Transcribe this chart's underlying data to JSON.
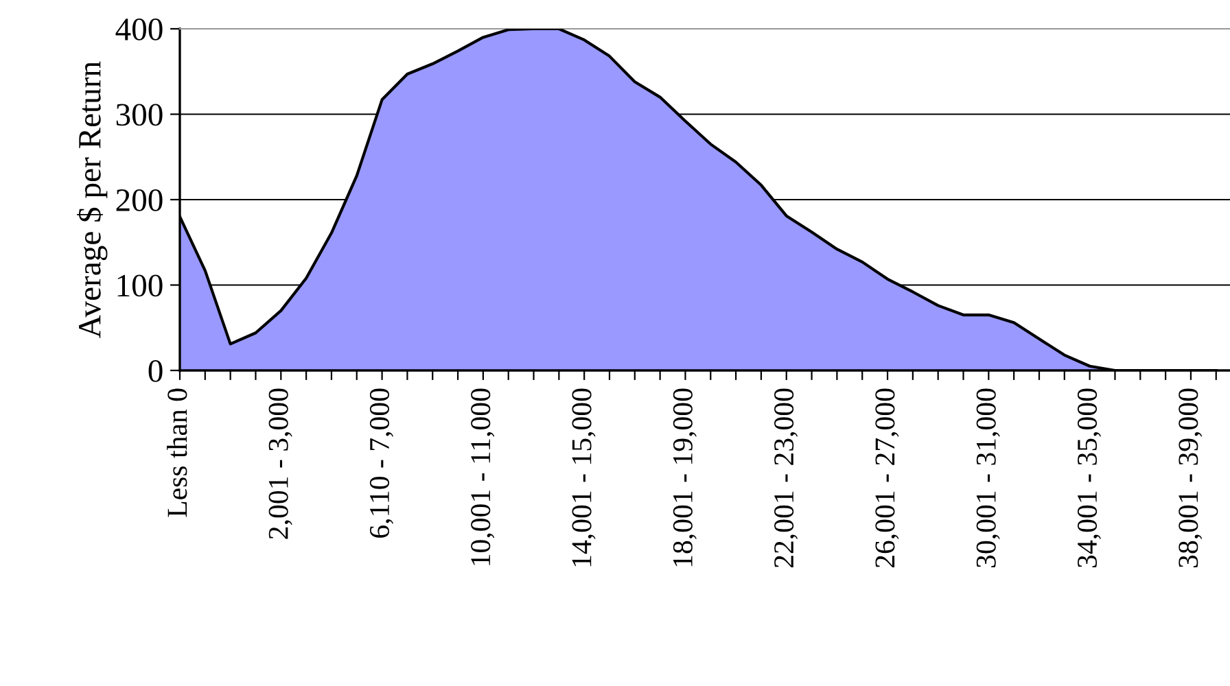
{
  "chart_data": {
    "type": "area",
    "ylabel": "Average $ per Return",
    "categories": [
      "Less than 0",
      null,
      null,
      null,
      "2,001 - 3,000",
      null,
      null,
      null,
      "6,110 - 7,000",
      null,
      null,
      null,
      "10,001 - 11,000",
      null,
      null,
      null,
      "14,001 - 15,000",
      null,
      null,
      null,
      "18,001 - 19,000",
      null,
      null,
      null,
      "22,001 - 23,000",
      null,
      null,
      null,
      "26,001 - 27,000",
      null,
      null,
      null,
      "30,001 - 31,000",
      null,
      null,
      null,
      "34,001 - 35,000",
      null,
      null,
      null,
      "38,001 - 39,000",
      null
    ],
    "values": [
      180,
      117,
      31,
      44,
      70,
      108,
      161,
      228,
      317,
      347,
      359,
      374,
      390,
      399,
      400,
      400,
      387,
      368,
      338,
      320,
      292,
      265,
      244,
      217,
      181,
      162,
      142,
      127,
      107,
      92,
      76,
      65,
      65,
      56,
      37,
      18,
      5,
      0,
      0,
      0,
      0,
      0
    ],
    "color": "#9999ff",
    "ylim": [
      0,
      400
    ],
    "yticks": [
      0,
      100,
      200,
      300,
      400
    ],
    "grid": "y"
  }
}
